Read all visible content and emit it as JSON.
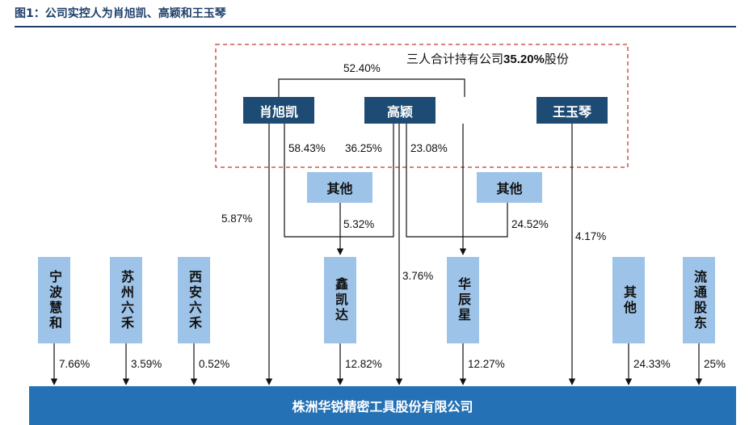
{
  "figure": {
    "title": "图1：公司实控人为肖旭凯、高颖和王玉琴"
  },
  "note": {
    "prefix": "三人合计持有公司",
    "value": "35.20%",
    "suffix": "股份"
  },
  "persons": [
    {
      "name": "肖旭凯"
    },
    {
      "name": "高颖"
    },
    {
      "name": "王玉琴"
    }
  ],
  "others": [
    {
      "name": "其他"
    },
    {
      "name": "其他"
    }
  ],
  "shareholders": [
    {
      "name": "宁波慧和",
      "pct": "7.66%"
    },
    {
      "name": "苏州六禾",
      "pct": "3.59%"
    },
    {
      "name": "西安六禾",
      "pct": "0.52%"
    },
    {
      "name": "鑫凯达",
      "pct": "12.82%"
    },
    {
      "name": "华辰星",
      "pct": "12.27%"
    },
    {
      "name": "其他",
      "pct": "24.33%"
    },
    {
      "name": "流通股东",
      "pct": "25%"
    }
  ],
  "links": {
    "xiao_gao": "52.40%",
    "xiao_xinkaida": "58.43%",
    "gao_xinkaida": "36.25%",
    "gao_huachenxing": "23.08%",
    "others_xinkaida": "5.32%",
    "others_huachenxing": "24.52%",
    "xiao_company": "5.87%",
    "gao_company": "3.76%",
    "wang_company": "4.17%"
  },
  "company": {
    "name": "株洲华锐精密工具股份有限公司"
  }
}
